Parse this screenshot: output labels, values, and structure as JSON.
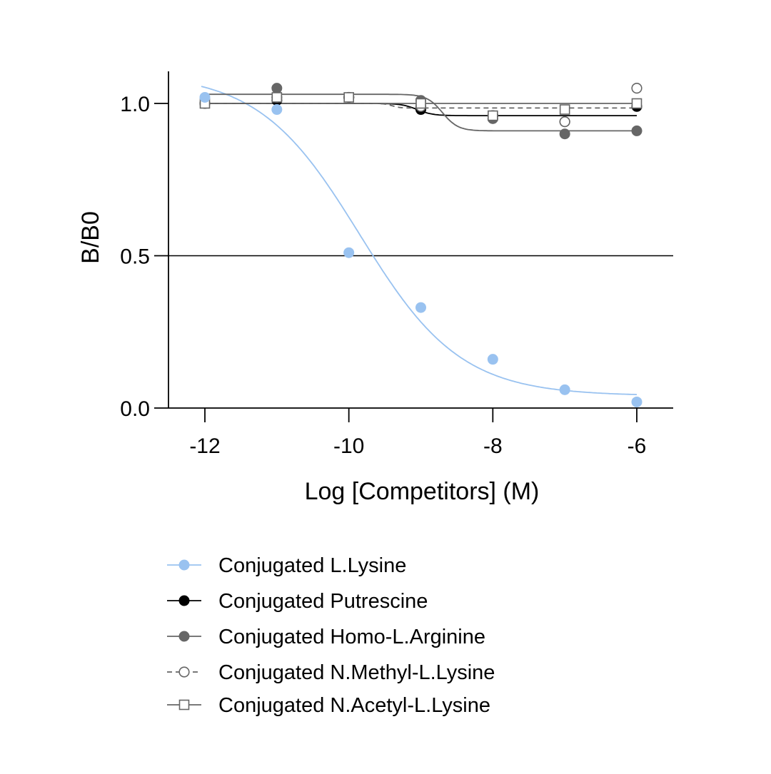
{
  "chart_data": {
    "type": "scatter",
    "title": "",
    "xlabel": "Log [Competitors] (M)",
    "ylabel": "B/B0",
    "xlim": [
      -12.7,
      -5.5
    ],
    "ylim": [
      0.0,
      1.1
    ],
    "xticks": [
      -12,
      -10,
      -8,
      -6
    ],
    "xtick_labels": [
      "-12",
      "-10",
      "-8",
      "-6"
    ],
    "yticks": [
      0.0,
      0.5,
      1.0
    ],
    "ytick_labels": [
      "0.0",
      "0.5",
      "1.0"
    ],
    "reference_line": 0.5,
    "grid": false,
    "legend_position": "bottom",
    "series": [
      {
        "name": "Conjugated L.Lysine",
        "color": "#99c2f0",
        "marker": "filled-circle",
        "line_style": "solid",
        "x": [
          -12,
          -11,
          -10,
          -9,
          -8,
          -7,
          -6
        ],
        "y": [
          1.02,
          0.98,
          0.51,
          0.33,
          0.16,
          0.06,
          0.02
        ],
        "fit": {
          "type": "sigmoid",
          "top": 1.1,
          "bottom": 0.04,
          "logEC50": -9.85,
          "hill": 0.62
        }
      },
      {
        "name": "Conjugated Putrescine",
        "color": "#000000",
        "marker": "filled-circle",
        "line_style": "solid",
        "x": [
          -12,
          -11,
          -10,
          -9,
          -8,
          -7,
          -6
        ],
        "y": [
          1.0,
          1.01,
          1.02,
          0.98,
          0.96,
          0.94,
          0.99
        ],
        "fit": {
          "type": "sigmoid",
          "top": 1.0,
          "bottom": 0.96,
          "logEC50": -9.05,
          "hill": 4
        }
      },
      {
        "name": "Conjugated Homo-L.Arginine",
        "color": "#666666",
        "marker": "filled-circle",
        "line_style": "solid",
        "x": [
          -12,
          -11,
          -10,
          -9,
          -8,
          -7,
          -6
        ],
        "y": [
          1.0,
          1.05,
          1.02,
          1.01,
          0.95,
          0.9,
          0.91
        ],
        "fit": {
          "type": "sigmoid",
          "top": 1.03,
          "bottom": 0.91,
          "logEC50": -8.7,
          "hill": 4
        }
      },
      {
        "name": "Conjugated N.Methyl-L.Lysine",
        "color": "#666666",
        "marker": "open-circle",
        "line_style": "dashed",
        "x": [
          -12,
          -11,
          -10,
          -9,
          -8,
          -7,
          -6
        ],
        "y": [
          1.0,
          1.02,
          1.02,
          0.99,
          0.96,
          0.94,
          1.05
        ],
        "fit": {
          "type": "sigmoid",
          "top": 1.0,
          "bottom": 0.985,
          "logEC50": -9.4,
          "hill": 8
        }
      },
      {
        "name": "Conjugated N.Acetyl-L.Lysine",
        "color": "#666666",
        "marker": "open-square",
        "line_style": "solid",
        "x": [
          -12,
          -11,
          -10,
          -9,
          -8,
          -7,
          -6
        ],
        "y": [
          1.0,
          1.02,
          1.02,
          1.0,
          0.96,
          0.98,
          1.0
        ],
        "fit": {
          "type": "sigmoid",
          "top": 1.0,
          "bottom": 1.0,
          "logEC50": -9.0,
          "hill": 1
        }
      }
    ]
  }
}
